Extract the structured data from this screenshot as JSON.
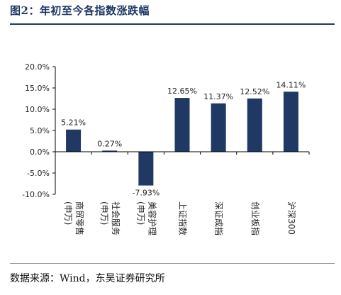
{
  "figure": {
    "title": "图2：年初至今各指数涨跌幅",
    "source": "数据来源：Wind，东吴证券研究所"
  },
  "colors": {
    "bar": "#1f3864",
    "title": "#1f3864",
    "axis": "#000000"
  },
  "chart_data": {
    "type": "bar",
    "categories": [
      "商贸零售(申万)",
      "社会服务(申万)",
      "美容护理(申万)",
      "上证指数",
      "深证成指",
      "创业板指",
      "沪深300"
    ],
    "category_columns": [
      [
        "商贸零售",
        "(申万)"
      ],
      [
        "社会服务",
        "(申万)"
      ],
      [
        "美容护理",
        "(申万)"
      ],
      [
        "上证指数"
      ],
      [
        "深证成指"
      ],
      [
        "创业板指"
      ],
      [
        "沪深300"
      ]
    ],
    "values": [
      5.21,
      0.27,
      -7.93,
      12.65,
      11.37,
      12.52,
      14.11
    ],
    "data_labels": [
      "5.21%",
      "0.27%",
      "-7.93%",
      "12.65%",
      "11.37%",
      "12.52%",
      "14.11%"
    ],
    "unit": "%",
    "ylim": [
      -10,
      20
    ],
    "yticks": [
      -10,
      -5,
      0,
      5,
      10,
      15,
      20
    ],
    "ytick_labels": [
      "-10.0%",
      "-5.0%",
      "0.0%",
      "5.0%",
      "10.0%",
      "15.0%",
      "20.0%"
    ],
    "grid": false,
    "legend": "none"
  }
}
